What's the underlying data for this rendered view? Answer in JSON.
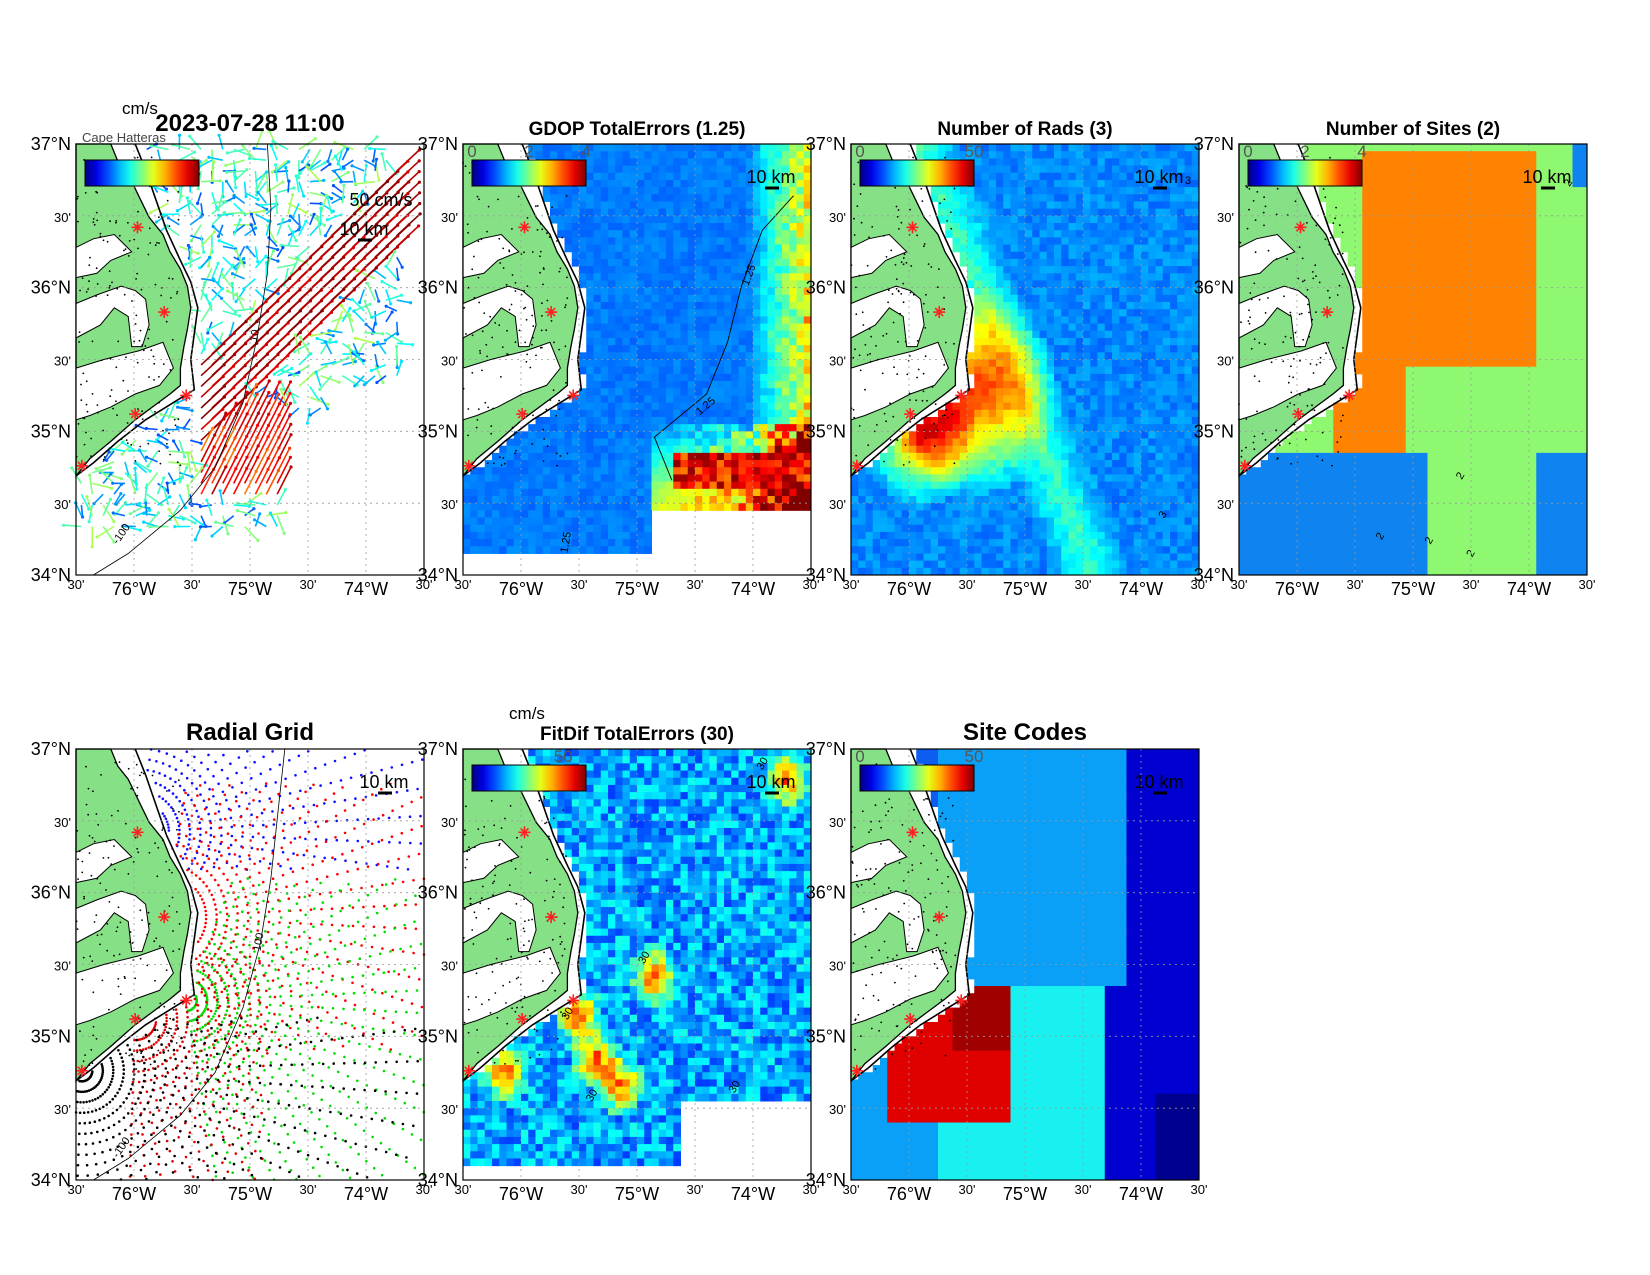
{
  "figure": {
    "timestamp": "2023-07-28 11:00",
    "stacked_label": "Cape Hatteras",
    "panels": [
      {
        "id": "vectors",
        "title": "",
        "cb_unit": "cm/s",
        "cb_ticks": [],
        "ref_arrow": "50 cm/s",
        "scale_bar": "10 km",
        "contour_labels": [
          "-100",
          "10"
        ]
      },
      {
        "id": "gdop",
        "title": "GDOP TotalErrors (1.25)",
        "cb_unit": "",
        "cb_ticks": [
          "0",
          "2",
          "4"
        ],
        "ref_arrow": "",
        "scale_bar": "10 km",
        "contour_labels": [
          "1.25",
          "1.25",
          "1.25",
          "1.25"
        ]
      },
      {
        "id": "rads",
        "title": "Number of Rads (3)",
        "cb_unit": "",
        "cb_ticks": [
          "0",
          "50"
        ],
        "ref_arrow": "",
        "scale_bar": "10 km",
        "contour_labels": [
          "3",
          "3"
        ]
      },
      {
        "id": "sites",
        "title": "Number of Sites (2)",
        "cb_unit": "",
        "cb_ticks": [
          "0",
          "2",
          "4"
        ],
        "ref_arrow": "",
        "scale_bar": "10 km",
        "contour_labels": [
          "2",
          "2",
          "2",
          "2"
        ]
      },
      {
        "id": "radial",
        "title": "Radial Grid",
        "cb_unit": "",
        "cb_ticks": [],
        "ref_arrow": "",
        "scale_bar": "10 km",
        "contour_labels": [
          "100",
          "-100"
        ]
      },
      {
        "id": "fitdif",
        "title": "FitDif TotalErrors (30)",
        "cb_unit": "cm/s",
        "cb_ticks": [
          "50"
        ],
        "ref_arrow": "",
        "scale_bar": "10 km",
        "contour_labels": [
          "30",
          "30",
          "30",
          "30",
          "30"
        ]
      },
      {
        "id": "codes",
        "title": "Site Codes",
        "cb_unit": "",
        "cb_ticks": [
          "0",
          "50"
        ],
        "ref_arrow": "",
        "scale_bar": "10 km",
        "contour_labels": []
      }
    ],
    "lat_ticks": [
      "37°N",
      "30'",
      "36°N",
      "30'",
      "35°N",
      "30'",
      "34°N"
    ],
    "lon_ticks": [
      "30'",
      "76°W",
      "30'",
      "75°W",
      "30'",
      "74°W",
      "30'"
    ]
  },
  "map_data": {
    "lon_range": [
      -76.5,
      -73.5
    ],
    "lat_range": [
      34.0,
      37.0
    ],
    "sites": [
      {
        "lon": -75.97,
        "lat": 36.42
      },
      {
        "lon": -75.74,
        "lat": 35.83
      },
      {
        "lon": -75.55,
        "lat": 35.25
      },
      {
        "lon": -75.99,
        "lat": 35.12
      },
      {
        "lon": -76.45,
        "lat": 34.76
      }
    ],
    "colors": {
      "land": "#86e086",
      "sites_mid": "#8ef870",
      "sites_high": "#ff8200",
      "sites_low": "#0f84f0",
      "site_marker": "#ff2020",
      "radial_site1": "#1010ff",
      "radial_site2": "#ff0000",
      "radial_site3": "#00dd00",
      "radial_site4": "#e00000",
      "radial_site5": "#000000",
      "code_blue": "#0d5df0",
      "code_darkblue": "#0000d0",
      "code_cyan": "#19f0f0",
      "code_lightblue": "#0aa0f8",
      "code_red": "#e00000",
      "code_darkred": "#a00000"
    }
  }
}
